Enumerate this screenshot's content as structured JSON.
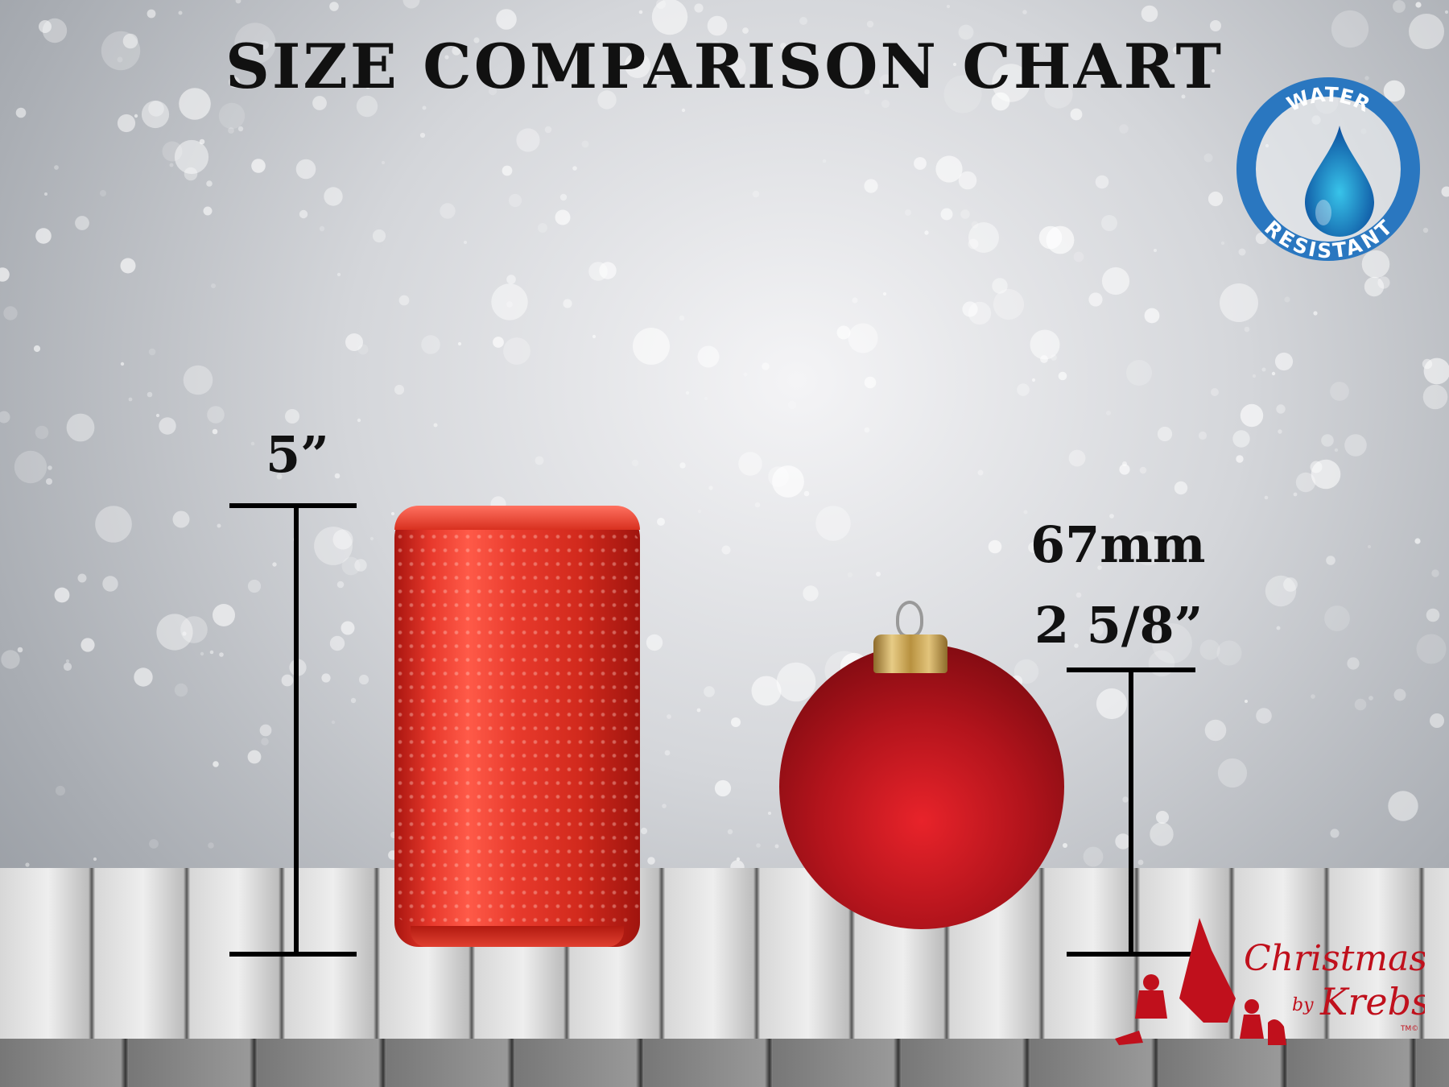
{
  "title": "SIZE COMPARISON CHART",
  "badge": {
    "top_text": "WATER",
    "bottom_text": "RESISTANT",
    "icon": "water-drop-icon",
    "color": "#2a77c0"
  },
  "can": {
    "height_label": "5”",
    "color": "#e8392c"
  },
  "ornament": {
    "metric_label": "67mm",
    "imperial_label": "2 5/8”",
    "color": "#b3141c"
  },
  "logo": {
    "text_main": "Christmas",
    "text_by": "by",
    "text_brand": "Krebs",
    "tm": "TM©",
    "color": "#c0101c"
  }
}
